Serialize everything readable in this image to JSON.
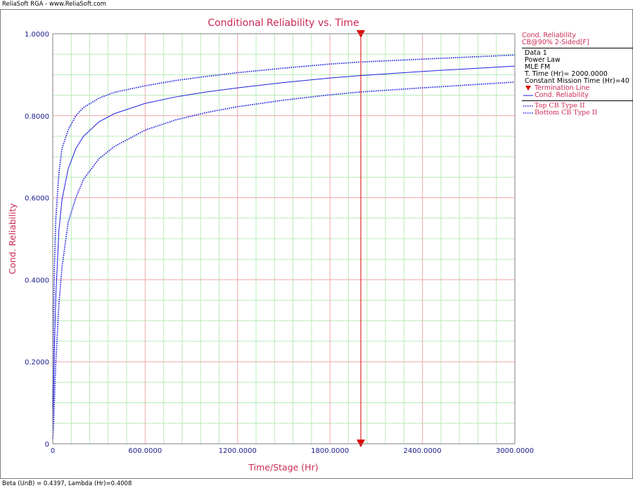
{
  "header": {
    "text": "ReliaSoft RGA - www.ReliaSoft.com"
  },
  "footer": {
    "text": "Beta (UnB) = 0.4397, Lambda (Hr)=0.4008"
  },
  "colors": {
    "title": "#cc2a55",
    "axis_text": "#1a1a8c",
    "major_grid": "#f2a7a7",
    "minor_grid": "#b8ecb8",
    "curve": "#1f1fe0",
    "termination": "#e00000"
  },
  "legend": {
    "header_line1": "Cond. Reliability",
    "header_line2": "CB@90% 2-Sided[F]",
    "data_name": "Data 1",
    "model": "Power Law",
    "method": "MLE FM",
    "term_time": "T. Time (Hr)= 2000.0000",
    "mission_time": "Constant Mission Time (Hr)=40",
    "items": [
      {
        "label": "Termination Line",
        "symbol": "triangle-down-icon"
      },
      {
        "label": "Cond. Reliability",
        "symbol": "solid-line"
      },
      {
        "label": "Top CB Type II",
        "symbol": "dotted-line"
      },
      {
        "label": "Bottom CB Type II",
        "symbol": "dotted-line"
      }
    ]
  },
  "chart_data": {
    "type": "line",
    "title": "Conditional Reliability vs. Time",
    "xlabel": "Time/Stage (Hr)",
    "ylabel": "Cond. Reliability",
    "xlim": [
      0,
      3000
    ],
    "ylim": [
      0,
      1
    ],
    "x_ticks": [
      0,
      600,
      1200,
      1800,
      2400,
      3000
    ],
    "x_tick_labels": [
      "0",
      "600.0000",
      "1200.0000",
      "1800.0000",
      "2400.0000",
      "3000.0000"
    ],
    "y_ticks": [
      0,
      0.2,
      0.4,
      0.6,
      0.8,
      1.0
    ],
    "y_tick_labels": [
      "0",
      "0.2000",
      "0.4000",
      "0.6000",
      "0.8000",
      "1.0000"
    ],
    "x_minor_step": 120,
    "y_minor_step": 0.05,
    "grid": true,
    "legend_position": "right",
    "termination_line_x": 2000,
    "series": [
      {
        "name": "Cond. Reliability",
        "style": "solid",
        "x": [
          5,
          10,
          20,
          40,
          60,
          100,
          150,
          200,
          300,
          400,
          600,
          800,
          1000,
          1200,
          1500,
          1800,
          2000,
          2400,
          3000
        ],
        "y": [
          0.12,
          0.22,
          0.36,
          0.52,
          0.595,
          0.67,
          0.72,
          0.75,
          0.785,
          0.805,
          0.83,
          0.846,
          0.858,
          0.868,
          0.881,
          0.892,
          0.898,
          0.908,
          0.921
        ]
      },
      {
        "name": "Top CB Type II",
        "style": "dotted",
        "x": [
          5,
          10,
          20,
          40,
          60,
          100,
          150,
          200,
          300,
          400,
          600,
          800,
          1000,
          1200,
          1500,
          1800,
          2000,
          2400,
          3000
        ],
        "y": [
          0.3,
          0.42,
          0.55,
          0.66,
          0.72,
          0.765,
          0.8,
          0.82,
          0.843,
          0.857,
          0.873,
          0.886,
          0.896,
          0.905,
          0.916,
          0.926,
          0.931,
          0.938,
          0.948
        ]
      },
      {
        "name": "Bottom CB Type II",
        "style": "dotted",
        "x": [
          5,
          10,
          20,
          40,
          60,
          100,
          150,
          200,
          300,
          400,
          600,
          800,
          1000,
          1200,
          1500,
          1800,
          2000,
          2400,
          3000
        ],
        "y": [
          0.04,
          0.1,
          0.2,
          0.34,
          0.43,
          0.54,
          0.6,
          0.645,
          0.695,
          0.725,
          0.765,
          0.79,
          0.808,
          0.822,
          0.838,
          0.851,
          0.858,
          0.868,
          0.882
        ]
      }
    ]
  }
}
